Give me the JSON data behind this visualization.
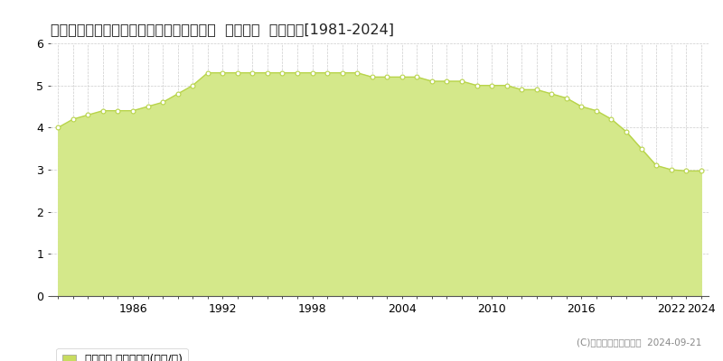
{
  "title": "兵庫県赤穂郡上郡町宿字ノリサ１６１番２  公示地価  地価推移[1981-2024]",
  "years": [
    1981,
    1982,
    1983,
    1984,
    1985,
    1986,
    1987,
    1988,
    1989,
    1990,
    1991,
    1992,
    1993,
    1994,
    1995,
    1996,
    1997,
    1998,
    1999,
    2000,
    2001,
    2002,
    2003,
    2004,
    2005,
    2006,
    2007,
    2008,
    2009,
    2010,
    2011,
    2012,
    2013,
    2014,
    2015,
    2016,
    2017,
    2018,
    2019,
    2020,
    2021,
    2022,
    2023,
    2024
  ],
  "values": [
    4.0,
    4.2,
    4.3,
    4.4,
    4.4,
    4.4,
    4.5,
    4.6,
    4.8,
    5.0,
    5.3,
    5.3,
    5.3,
    5.3,
    5.3,
    5.3,
    5.3,
    5.3,
    5.3,
    5.3,
    5.3,
    5.2,
    5.2,
    5.2,
    5.2,
    5.1,
    5.1,
    5.1,
    5.0,
    5.0,
    5.0,
    4.9,
    4.9,
    4.8,
    4.7,
    4.5,
    4.4,
    4.2,
    3.9,
    3.5,
    3.1,
    3.0,
    2.97,
    2.97
  ],
  "line_color": "#b8d44a",
  "fill_color": "#d4e88a",
  "marker_facecolor": "#ffffff",
  "marker_edgecolor": "#b8d44a",
  "bg_color": "#ffffff",
  "grid_color": "#cccccc",
  "ylim": [
    0,
    6
  ],
  "yticks": [
    0,
    1,
    2,
    3,
    4,
    5,
    6
  ],
  "xtick_labels": [
    1986,
    1992,
    1998,
    2004,
    2010,
    2016,
    2022,
    2024
  ],
  "legend_label": "公示地価 平均坪単価(万円/坪)",
  "legend_marker_color": "#c8dc60",
  "copyright_text": "(C)土地価格ドットコム  2024-09-21",
  "title_fontsize": 11.5,
  "tick_fontsize": 9,
  "legend_fontsize": 9,
  "copyright_fontsize": 7.5
}
